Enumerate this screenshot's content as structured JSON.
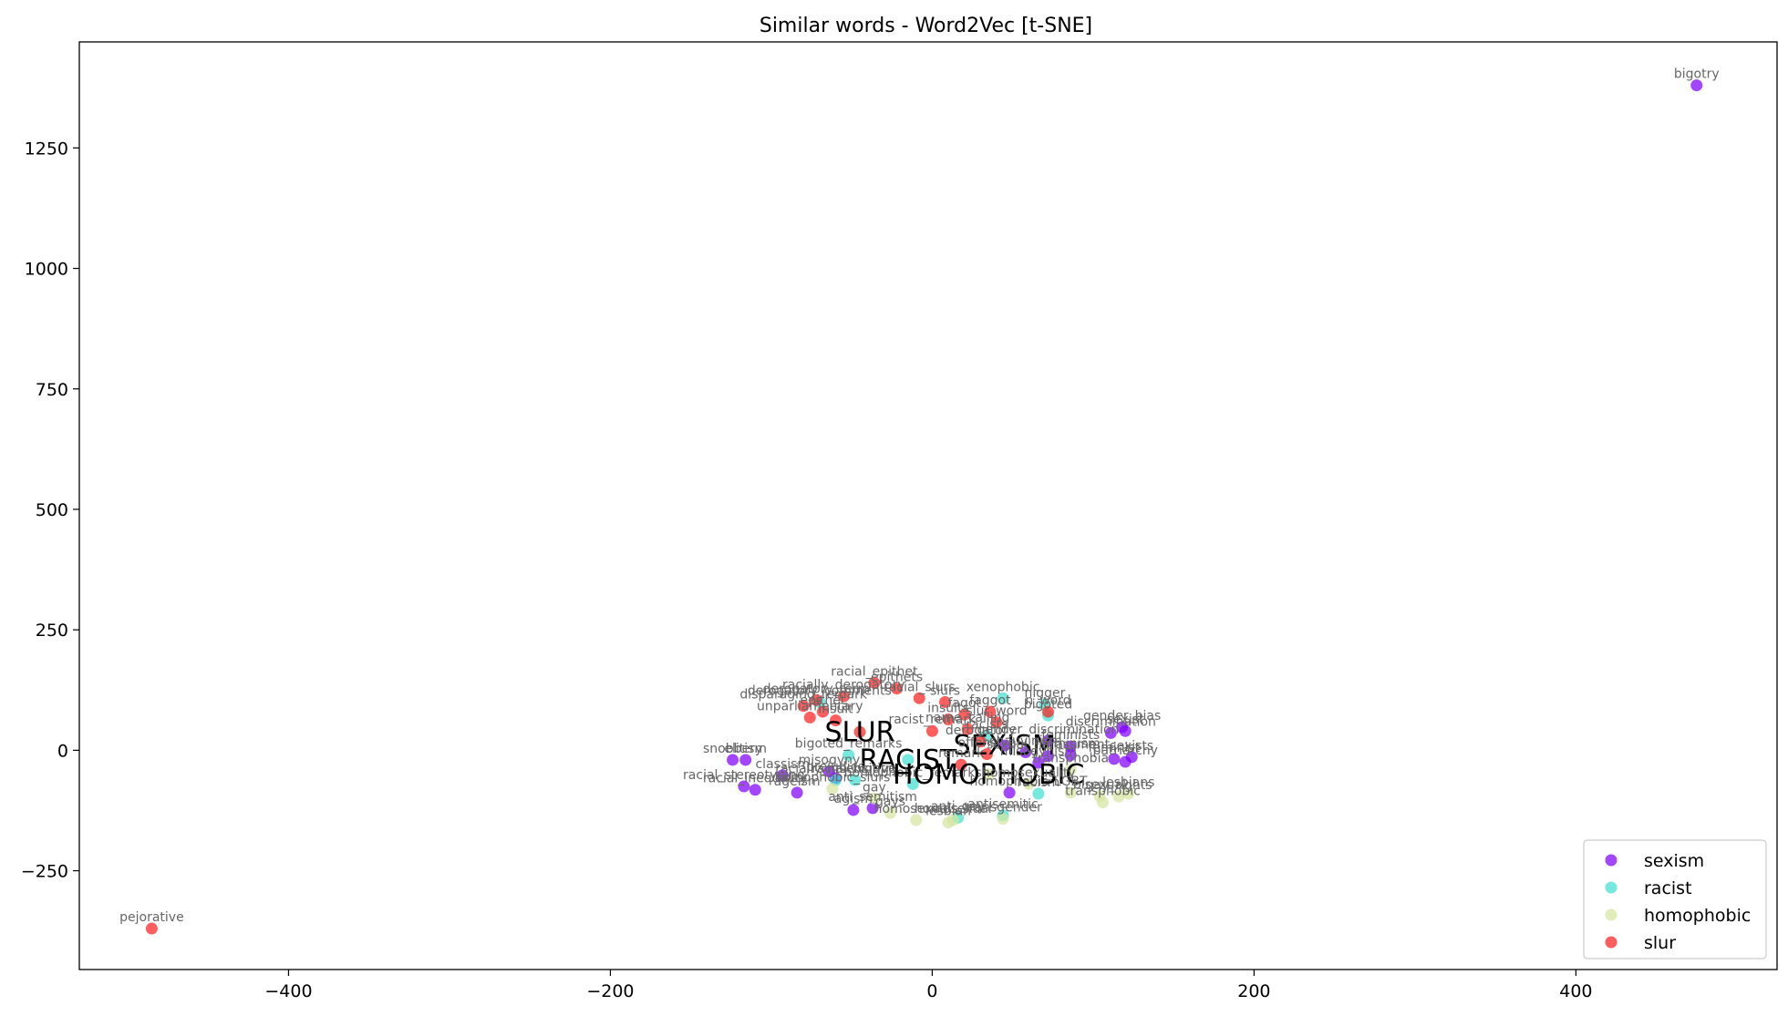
{
  "chart_data": {
    "type": "scatter",
    "title": "Similar words - Word2Vec [t-SNE]",
    "xlabel": "",
    "ylabel": "",
    "xlim": [
      -530,
      525
    ],
    "ylim": [
      -455,
      1470
    ],
    "xticks": [
      -400,
      -200,
      0,
      200,
      400
    ],
    "yticks": [
      -250,
      0,
      250,
      500,
      750,
      1000,
      1250
    ],
    "xtick_labels": [
      "−400",
      "−200",
      "0",
      "200",
      "400"
    ],
    "ytick_labels": [
      "−250",
      "0",
      "250",
      "500",
      "750",
      "1000",
      "1250"
    ],
    "grid": false,
    "legend_position": "bottom-right",
    "series": [
      {
        "name": "sexism",
        "color": "#8000ff",
        "points": [
          {
            "x": 475,
            "y": 1380,
            "label": "bigotry"
          },
          {
            "x": 45,
            "y": 10,
            "label": "SEXISM",
            "big": true
          },
          {
            "x": -124,
            "y": -20,
            "label": "snobbery"
          },
          {
            "x": -116,
            "y": -20,
            "label": "elitism"
          },
          {
            "x": -117,
            "y": -75,
            "label": "racial_stereotyping"
          },
          {
            "x": -110,
            "y": -82,
            "label": "racial_inequality"
          },
          {
            "x": -93,
            "y": -52,
            "label": "classism"
          },
          {
            "x": -84,
            "y": -88,
            "label": "ageism"
          },
          {
            "x": -64,
            "y": -44,
            "label": "misogyny"
          },
          {
            "x": -60,
            "y": -58,
            "label": "prejudice"
          },
          {
            "x": -49,
            "y": -124,
            "label": "agism"
          },
          {
            "x": -37,
            "y": -120,
            "label": "anti_semitism"
          },
          {
            "x": 58,
            "y": -4,
            "label": "chauvinism"
          },
          {
            "x": 66,
            "y": -26,
            "label": "misogynism"
          },
          {
            "x": 72,
            "y": 20,
            "label": "gender_discrimination"
          },
          {
            "x": 72,
            "y": -12,
            "label": "sexual_harassment"
          },
          {
            "x": 86,
            "y": -10,
            "label": "feminism"
          },
          {
            "x": 86,
            "y": 8,
            "label": "feminists"
          },
          {
            "x": 48,
            "y": -88,
            "label": "homophobia"
          },
          {
            "x": 111,
            "y": 36,
            "label": "discrimination"
          },
          {
            "x": 113,
            "y": -18,
            "label": "feminist"
          },
          {
            "x": 118,
            "y": 48,
            "label": "gender_bias"
          },
          {
            "x": 120,
            "y": 40,
            "label": "sexist"
          },
          {
            "x": 120,
            "y": -24,
            "label": "patriarchy"
          },
          {
            "x": 124,
            "y": -14,
            "label": "sexists"
          }
        ]
      },
      {
        "name": "racist",
        "color": "#40e0d0",
        "points": [
          {
            "x": -15,
            "y": -20,
            "label": "RACIST",
            "big": true
          },
          {
            "x": 44,
            "y": 108,
            "label": "xenophobic"
          },
          {
            "x": 70,
            "y": 95,
            "label": "nigger"
          },
          {
            "x": 72,
            "y": 72,
            "label": "bigoted"
          },
          {
            "x": -60,
            "y": -62,
            "label": "racially_insensitive"
          },
          {
            "x": -48,
            "y": -62,
            "label": "racial_bigotry"
          },
          {
            "x": -70,
            "y": 100,
            "label": "derogatory_comments"
          },
          {
            "x": -52,
            "y": -10,
            "label": "bigoted_remarks"
          },
          {
            "x": -12,
            "y": -70,
            "label": "homophobic_remarks"
          },
          {
            "x": 44,
            "y": -135,
            "label": "antisemitic"
          },
          {
            "x": 16,
            "y": -140,
            "label": "anti_gay"
          },
          {
            "x": 66,
            "y": -90,
            "label": "racism"
          },
          {
            "x": 34,
            "y": 30,
            "label": "racists"
          }
        ]
      },
      {
        "name": "homophobic",
        "color": "#d4e4a0",
        "points": [
          {
            "x": 35,
            "y": -50,
            "label": "HOMOPHOBIC",
            "big": true
          },
          {
            "x": -62,
            "y": -80,
            "label": "homophobic_slurs"
          },
          {
            "x": -36,
            "y": -100,
            "label": "gay"
          },
          {
            "x": -26,
            "y": -130,
            "label": "gays"
          },
          {
            "x": -10,
            "y": -145,
            "label": "homosexuals"
          },
          {
            "x": 10,
            "y": -150,
            "label": "lesbian"
          },
          {
            "x": 13,
            "y": -145,
            "label": "homosexual"
          },
          {
            "x": 44,
            "y": -142,
            "label": "transgender"
          },
          {
            "x": 60,
            "y": -70,
            "label": "homosexuality"
          },
          {
            "x": 86,
            "y": -88,
            "label": "LGBT"
          },
          {
            "x": 104,
            "y": -95,
            "label": "bisexual"
          },
          {
            "x": 106,
            "y": -108,
            "label": "transphobic"
          },
          {
            "x": 116,
            "y": -96,
            "label": "gay_rights"
          },
          {
            "x": 122,
            "y": -90,
            "label": "lesbians"
          },
          {
            "x": 86,
            "y": -40,
            "label": "transphobia"
          }
        ]
      },
      {
        "name": "slur",
        "color": "#ff2020",
        "points": [
          {
            "x": -485,
            "y": -370,
            "label": "pejorative"
          },
          {
            "x": -45,
            "y": 38,
            "label": "SLUR",
            "big": true
          },
          {
            "x": -36,
            "y": 140,
            "label": "racial_epithet"
          },
          {
            "x": -22,
            "y": 128,
            "label": "epithets"
          },
          {
            "x": -55,
            "y": 112,
            "label": "racially_derogatory"
          },
          {
            "x": -72,
            "y": 104,
            "label": "derogatory_term"
          },
          {
            "x": -80,
            "y": 92,
            "label": "disparaging_remark"
          },
          {
            "x": -68,
            "y": 80,
            "label": "epithet"
          },
          {
            "x": -76,
            "y": 68,
            "label": "unparliamentary"
          },
          {
            "x": -60,
            "y": 62,
            "label": "insult"
          },
          {
            "x": -8,
            "y": 108,
            "label": "racial_slurs"
          },
          {
            "x": 8,
            "y": 100,
            "label": "slurs"
          },
          {
            "x": 20,
            "y": 74,
            "label": "fagot"
          },
          {
            "x": 36,
            "y": 80,
            "label": "faggot"
          },
          {
            "x": 40,
            "y": 58,
            "label": "slur_word"
          },
          {
            "x": 10,
            "y": 64,
            "label": "insults"
          },
          {
            "x": 22,
            "y": 44,
            "label": "name_calling"
          },
          {
            "x": 30,
            "y": 18,
            "label": "derogatory"
          },
          {
            "x": 34,
            "y": -8,
            "label": "offensive"
          },
          {
            "x": 18,
            "y": -30,
            "label": "remark"
          },
          {
            "x": 72,
            "y": 80,
            "label": "n_word"
          },
          {
            "x": 0,
            "y": 40,
            "label": "racist_remark"
          }
        ]
      }
    ]
  }
}
